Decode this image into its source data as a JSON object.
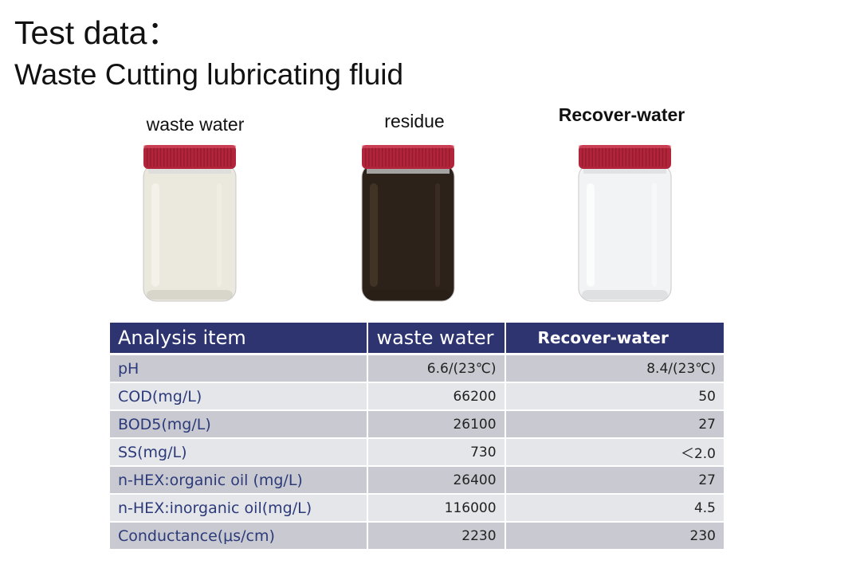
{
  "title": "Test data：",
  "subtitle": "Waste Cutting lubricating fluid",
  "samples": [
    {
      "label": "waste water",
      "liquid": "#ebe8dd",
      "highlight": "#f7f5ee"
    },
    {
      "label": "residue",
      "liquid": "#2d2219",
      "highlight": "#4a3a2c"
    },
    {
      "label": "Recover-water",
      "liquid": "#f2f3f5",
      "highlight": "#ffffff"
    }
  ],
  "colors": {
    "header_bg": "#2e3470",
    "row_dark": "#c9cad1",
    "row_light": "#e5e6ea",
    "lid": "#b2243a"
  },
  "table": {
    "headers": [
      "Analysis item",
      "waste water",
      "Recover-water"
    ],
    "rows": [
      {
        "item": " pH",
        "waste": "6.6/(23℃)",
        "recover": "8.4/(23℃)"
      },
      {
        "item": "COD(mg/L)",
        "waste": "66200",
        "recover": "50"
      },
      {
        "item": "BOD5(mg/L)",
        "waste": "26100",
        "recover": "27"
      },
      {
        "item": "SS(mg/L)",
        "waste": "730",
        "recover": "＜2.0"
      },
      {
        "item": "n-HEX:organic oil (mg/L)",
        "waste": "26400",
        "recover": "27"
      },
      {
        "item": "n-HEX:inorganic oil(mg/L)",
        "waste": "116000",
        "recover": "4.5"
      },
      {
        "item": "Conductance(μs/cm)",
        "waste": "2230",
        "recover": "230"
      }
    ]
  }
}
